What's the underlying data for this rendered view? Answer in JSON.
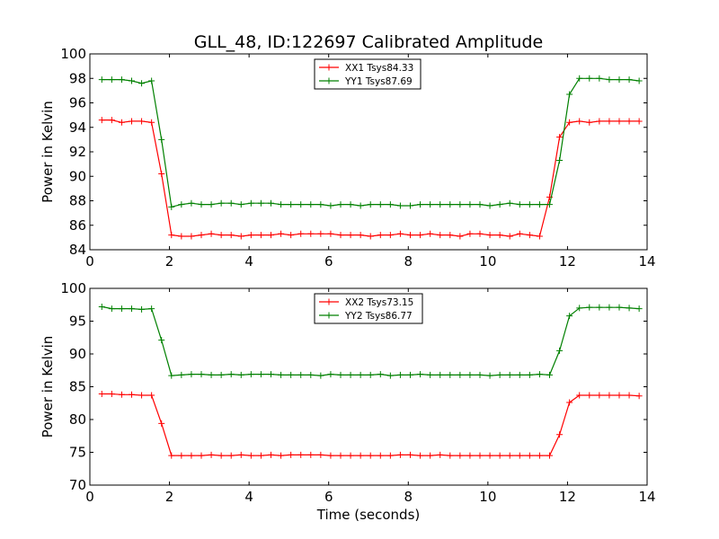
{
  "figure": {
    "title": "GLL_48, ID:122697 Calibrated Amplitude"
  },
  "chart_data": [
    {
      "type": "line",
      "title": "GLL_48, ID:122697 Calibrated Amplitude",
      "xlabel": "",
      "ylabel": "Power in Kelvin",
      "xlim": [
        0,
        14
      ],
      "ylim": [
        84,
        100
      ],
      "xticks": [
        0,
        2,
        4,
        6,
        8,
        10,
        12,
        14
      ],
      "yticks": [
        84,
        86,
        88,
        90,
        92,
        94,
        96,
        98,
        100
      ],
      "grid": false,
      "legend_position": "top-center",
      "x": [
        0.3,
        0.55,
        0.8,
        1.05,
        1.3,
        1.55,
        1.8,
        2.05,
        2.3,
        2.55,
        2.8,
        3.05,
        3.3,
        3.55,
        3.8,
        4.05,
        4.3,
        4.55,
        4.8,
        5.05,
        5.3,
        5.55,
        5.8,
        6.05,
        6.3,
        6.55,
        6.8,
        7.05,
        7.3,
        7.55,
        7.8,
        8.05,
        8.3,
        8.55,
        8.8,
        9.05,
        9.3,
        9.55,
        9.8,
        10.05,
        10.3,
        10.55,
        10.8,
        11.05,
        11.3,
        11.55,
        11.8,
        12.05,
        12.3,
        12.55,
        12.8,
        13.05,
        13.3,
        13.55,
        13.8
      ],
      "series": [
        {
          "name": "XX1 Tsys84.33",
          "color": "#ff0000",
          "values": [
            94.6,
            94.6,
            94.4,
            94.5,
            94.5,
            94.4,
            90.2,
            85.2,
            85.1,
            85.1,
            85.2,
            85.3,
            85.2,
            85.2,
            85.1,
            85.2,
            85.2,
            85.2,
            85.3,
            85.2,
            85.3,
            85.3,
            85.3,
            85.3,
            85.2,
            85.2,
            85.2,
            85.1,
            85.2,
            85.2,
            85.3,
            85.2,
            85.2,
            85.3,
            85.2,
            85.2,
            85.1,
            85.3,
            85.3,
            85.2,
            85.2,
            85.1,
            85.3,
            85.2,
            85.1,
            88.3,
            93.2,
            94.4,
            94.5,
            94.4,
            94.5,
            94.5,
            94.5,
            94.5,
            94.5
          ]
        },
        {
          "name": "YY1 Tsys87.69",
          "color": "#008000",
          "values": [
            97.9,
            97.9,
            97.9,
            97.8,
            97.6,
            97.8,
            93.0,
            87.5,
            87.7,
            87.8,
            87.7,
            87.7,
            87.8,
            87.8,
            87.7,
            87.8,
            87.8,
            87.8,
            87.7,
            87.7,
            87.7,
            87.7,
            87.7,
            87.6,
            87.7,
            87.7,
            87.6,
            87.7,
            87.7,
            87.7,
            87.6,
            87.6,
            87.7,
            87.7,
            87.7,
            87.7,
            87.7,
            87.7,
            87.7,
            87.6,
            87.7,
            87.8,
            87.7,
            87.7,
            87.7,
            87.7,
            91.3,
            96.7,
            98.0,
            98.0,
            98.0,
            97.9,
            97.9,
            97.9,
            97.8
          ]
        }
      ]
    },
    {
      "type": "line",
      "title": "",
      "xlabel": "Time (seconds)",
      "ylabel": "Power in Kelvin",
      "xlim": [
        0,
        14
      ],
      "ylim": [
        70,
        100
      ],
      "xticks": [
        0,
        2,
        4,
        6,
        8,
        10,
        12,
        14
      ],
      "yticks": [
        70,
        75,
        80,
        85,
        90,
        95,
        100
      ],
      "grid": false,
      "legend_position": "top-center",
      "x": [
        0.3,
        0.55,
        0.8,
        1.05,
        1.3,
        1.55,
        1.8,
        2.05,
        2.3,
        2.55,
        2.8,
        3.05,
        3.3,
        3.55,
        3.8,
        4.05,
        4.3,
        4.55,
        4.8,
        5.05,
        5.3,
        5.55,
        5.8,
        6.05,
        6.3,
        6.55,
        6.8,
        7.05,
        7.3,
        7.55,
        7.8,
        8.05,
        8.3,
        8.55,
        8.8,
        9.05,
        9.3,
        9.55,
        9.8,
        10.05,
        10.3,
        10.55,
        10.8,
        11.05,
        11.3,
        11.55,
        11.8,
        12.05,
        12.3,
        12.55,
        12.8,
        13.05,
        13.3,
        13.55,
        13.8
      ],
      "series": [
        {
          "name": "XX2 Tsys73.15",
          "color": "#ff0000",
          "values": [
            83.9,
            83.9,
            83.8,
            83.8,
            83.7,
            83.7,
            79.4,
            74.5,
            74.5,
            74.5,
            74.5,
            74.6,
            74.5,
            74.5,
            74.6,
            74.5,
            74.5,
            74.6,
            74.5,
            74.6,
            74.6,
            74.6,
            74.6,
            74.5,
            74.5,
            74.5,
            74.5,
            74.5,
            74.5,
            74.5,
            74.6,
            74.6,
            74.5,
            74.5,
            74.6,
            74.5,
            74.5,
            74.5,
            74.5,
            74.5,
            74.5,
            74.5,
            74.5,
            74.5,
            74.5,
            74.5,
            77.7,
            82.6,
            83.7,
            83.7,
            83.7,
            83.7,
            83.7,
            83.7,
            83.6
          ]
        },
        {
          "name": "YY2 Tsys86.77",
          "color": "#008000",
          "values": [
            97.2,
            96.9,
            96.9,
            96.9,
            96.8,
            96.9,
            92.1,
            86.7,
            86.8,
            86.9,
            86.9,
            86.8,
            86.8,
            86.9,
            86.8,
            86.9,
            86.9,
            86.9,
            86.8,
            86.8,
            86.8,
            86.8,
            86.7,
            86.9,
            86.8,
            86.8,
            86.8,
            86.8,
            86.9,
            86.7,
            86.8,
            86.8,
            86.9,
            86.8,
            86.8,
            86.8,
            86.8,
            86.8,
            86.8,
            86.7,
            86.8,
            86.8,
            86.8,
            86.8,
            86.9,
            86.8,
            90.5,
            95.8,
            97.0,
            97.1,
            97.1,
            97.1,
            97.1,
            97.0,
            96.9
          ]
        }
      ]
    }
  ]
}
